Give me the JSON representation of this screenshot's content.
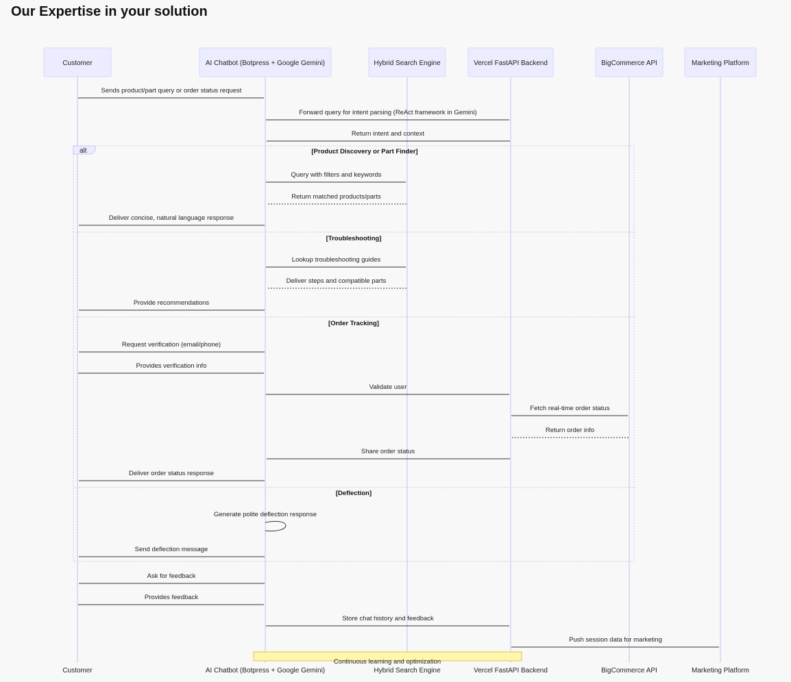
{
  "title": "Our Expertise in your solution",
  "actors": [
    {
      "id": "customer",
      "label": "Customer"
    },
    {
      "id": "chatbot",
      "label": "AI Chatbot (Botpress + Google Gemini)"
    },
    {
      "id": "search",
      "label": "Hybrid Search Engine"
    },
    {
      "id": "backend",
      "label": "Vercel FastAPI Backend"
    },
    {
      "id": "bigcommerce",
      "label": "BigCommerce API"
    },
    {
      "id": "marketing",
      "label": "Marketing Platform"
    }
  ],
  "alt_frame": {
    "tag": "alt",
    "sections": [
      "[Product Discovery or Part Finder]",
      "[Troubleshooting]",
      "[Order Tracking]",
      "[Deflection]"
    ]
  },
  "messages": [
    {
      "from": "customer",
      "to": "chatbot",
      "text": "Sends product/part query or order status request",
      "style": "solid"
    },
    {
      "from": "chatbot",
      "to": "backend",
      "text": "Forward query for intent parsing (ReAct framework in Gemini)",
      "style": "solid"
    },
    {
      "from": "backend",
      "to": "chatbot",
      "text": "Return intent and context",
      "style": "solid"
    },
    {
      "from": "chatbot",
      "to": "search",
      "text": "Query with filters and keywords",
      "style": "solid"
    },
    {
      "from": "search",
      "to": "chatbot",
      "text": "Return matched products/parts",
      "style": "dotted"
    },
    {
      "from": "chatbot",
      "to": "customer",
      "text": "Deliver concise, natural language response",
      "style": "solid"
    },
    {
      "from": "chatbot",
      "to": "search",
      "text": "Lookup troubleshooting guides",
      "style": "solid"
    },
    {
      "from": "search",
      "to": "chatbot",
      "text": "Deliver steps and compatible parts",
      "style": "dotted"
    },
    {
      "from": "chatbot",
      "to": "customer",
      "text": "Provide recommendations",
      "style": "solid"
    },
    {
      "from": "chatbot",
      "to": "customer",
      "text": "Request verification (email/phone)",
      "style": "solid"
    },
    {
      "from": "customer",
      "to": "chatbot",
      "text": "Provides verification info",
      "style": "solid"
    },
    {
      "from": "chatbot",
      "to": "backend",
      "text": "Validate user",
      "style": "solid"
    },
    {
      "from": "backend",
      "to": "bigcommerce",
      "text": "Fetch real-time order status",
      "style": "solid"
    },
    {
      "from": "bigcommerce",
      "to": "backend",
      "text": "Return order info",
      "style": "dotted"
    },
    {
      "from": "backend",
      "to": "chatbot",
      "text": "Share order status",
      "style": "solid"
    },
    {
      "from": "chatbot",
      "to": "customer",
      "text": "Deliver order status response",
      "style": "solid"
    },
    {
      "from": "chatbot",
      "to": "chatbot",
      "text": "Generate polite deflection response",
      "style": "self"
    },
    {
      "from": "chatbot",
      "to": "customer",
      "text": "Send deflection message",
      "style": "solid"
    },
    {
      "from": "chatbot",
      "to": "customer",
      "text": "Ask for feedback",
      "style": "solid"
    },
    {
      "from": "customer",
      "to": "chatbot",
      "text": "Provides feedback",
      "style": "solid"
    },
    {
      "from": "chatbot",
      "to": "backend",
      "text": "Store chat history and feedback",
      "style": "solid"
    },
    {
      "from": "backend",
      "to": "marketing",
      "text": "Push session data for marketing",
      "style": "solid"
    }
  ],
  "note": {
    "text": "Continuous learning and optimization"
  }
}
